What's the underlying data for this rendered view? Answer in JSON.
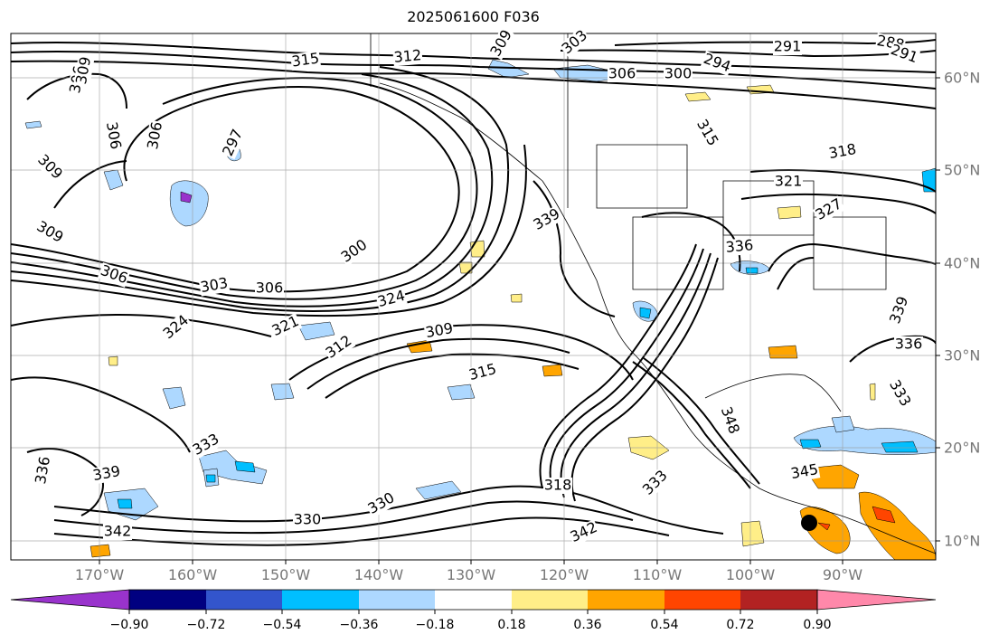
{
  "title": "2025061600 F036",
  "lon_labels": [
    "170°W",
    "160°W",
    "150°W",
    "140°W",
    "130°W",
    "120°W",
    "110°W",
    "100°W",
    "90°W"
  ],
  "lat_labels": [
    "60°N",
    "50°N",
    "40°N",
    "30°N",
    "20°N",
    "10°N"
  ],
  "colorbar": {
    "colors": [
      "#9933cc",
      "#000080",
      "#3355cc",
      "#00bfff",
      "#add8ff",
      "#ffffff",
      "#ffee88",
      "#ffa500",
      "#ff4500",
      "#b22222",
      "#ff88aa"
    ],
    "tick_labels": [
      "−0.90",
      "−0.72",
      "−0.54",
      "−0.36",
      "−0.18",
      "0.18",
      "0.36",
      "0.54",
      "0.72",
      "0.90"
    ]
  },
  "contour_labels": [
    {
      "text": "315"
    },
    {
      "text": "312"
    },
    {
      "text": "309"
    },
    {
      "text": "303"
    },
    {
      "text": "306"
    },
    {
      "text": "300"
    },
    {
      "text": "294"
    },
    {
      "text": "291"
    },
    {
      "text": "288"
    },
    {
      "text": "291"
    },
    {
      "text": "306"
    },
    {
      "text": "309"
    },
    {
      "text": "306"
    },
    {
      "text": "309"
    },
    {
      "text": "297"
    },
    {
      "text": "306"
    },
    {
      "text": "309"
    },
    {
      "text": "300"
    },
    {
      "text": "306"
    },
    {
      "text": "303"
    },
    {
      "text": "306"
    },
    {
      "text": "324"
    },
    {
      "text": "324"
    },
    {
      "text": "321"
    },
    {
      "text": "309"
    },
    {
      "text": "312"
    },
    {
      "text": "315"
    },
    {
      "text": "315"
    },
    {
      "text": "318"
    },
    {
      "text": "321"
    },
    {
      "text": "327"
    },
    {
      "text": "336"
    },
    {
      "text": "339"
    },
    {
      "text": "336"
    },
    {
      "text": "333"
    },
    {
      "text": "348"
    },
    {
      "text": "345"
    },
    {
      "text": "342"
    },
    {
      "text": "318"
    },
    {
      "text": "333"
    },
    {
      "text": "333"
    },
    {
      "text": "330"
    },
    {
      "text": "339"
    },
    {
      "text": "330"
    },
    {
      "text": "336"
    },
    {
      "text": "342"
    },
    {
      "text": "339"
    }
  ]
}
